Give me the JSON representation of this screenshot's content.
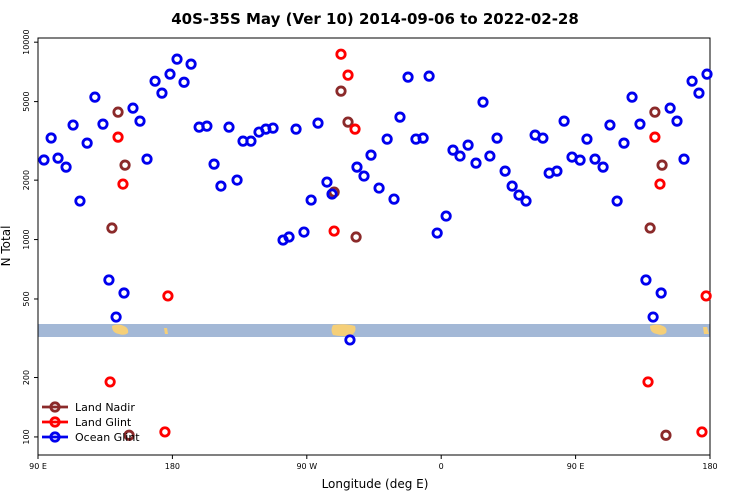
{
  "chart_data": {
    "type": "scatter",
    "title": "40S-35S May (Ver 10)   2014-09-06 to 2022-02-28",
    "x_label": "Longitude (deg E)",
    "y_label": "N Total",
    "log_y": true,
    "legend": "lower left",
    "xlim": [
      90,
      540
    ],
    "xticks": [
      {
        "value": 90,
        "label": "90 E"
      },
      180,
      {
        "value": 270,
        "label": "90 W"
      },
      {
        "value": 360,
        "label": "0"
      },
      {
        "value": 450,
        "label": "90 E"
      },
      {
        "value": 540,
        "label": "180"
      }
    ],
    "ylim": [
      81,
      10500
    ],
    "yticks": [
      100,
      200,
      500,
      1000,
      2000,
      5000,
      10000
    ],
    "series": [
      {
        "name": "Land Nadir",
        "color": "#8b2a2a",
        "x": [
          139.5,
          143.6,
          148.3,
          151.0,
          288.3,
          292.9,
          297.6,
          303.0,
          499.9,
          503.1,
          507.9,
          510.5
        ],
        "values": [
          1144,
          4421,
          2383,
          102,
          1740,
          5649,
          3936,
          1030,
          1144,
          4421,
          2383,
          102
        ]
      },
      {
        "name": "Land Glint",
        "color": "#ff0000",
        "x": [
          138.3,
          143.6,
          146.9,
          177.0,
          175.0,
          288.3,
          292.9,
          297.6,
          302.3,
          498.5,
          503.1,
          506.5,
          534.6,
          537.4
        ],
        "values": [
          190,
          3304,
          1910,
          518,
          106,
          1104,
          8690,
          6808,
          3627,
          190,
          3304,
          1910,
          106,
          518
        ]
      },
      {
        "name": "Ocean Glint",
        "color": "#0000ee",
        "x": [
          94.0,
          98.8,
          103.4,
          108.8,
          113.5,
          118.1,
          122.9,
          128.1,
          133.5,
          137.5,
          142.3,
          147.6,
          153.6,
          158.3,
          163.0,
          168.4,
          173.0,
          178.4,
          183.1,
          187.8,
          192.5,
          197.9,
          203.1,
          207.9,
          212.5,
          217.9,
          223.3,
          227.3,
          232.6,
          238.0,
          242.6,
          247.4,
          254.1,
          258.1,
          262.8,
          268.1,
          272.9,
          277.5,
          283.5,
          286.9,
          298.9,
          303.6,
          308.3,
          313.0,
          318.4,
          323.8,
          328.4,
          332.4,
          337.8,
          343.1,
          347.9,
          351.9,
          357.3,
          363.3,
          367.9,
          372.6,
          378.0,
          383.3,
          388.0,
          392.6,
          397.4,
          402.8,
          407.5,
          412.1,
          416.8,
          422.9,
          428.1,
          432.3,
          437.5,
          442.3,
          447.6,
          453.0,
          457.6,
          463.0,
          468.4,
          473.0,
          477.8,
          482.4,
          487.8,
          493.1,
          497.1,
          501.9,
          507.3,
          513.3,
          517.9,
          522.6,
          528.0,
          532.6,
          538.0
        ],
        "values": [
          2530,
          3270,
          2586,
          2328,
          3802,
          1567,
          3080,
          5266,
          3844,
          624,
          405,
          536,
          4632,
          3981,
          2556,
          6346,
          5519,
          6887,
          8203,
          6266,
          7740,
          3711,
          3755,
          2411,
          1866,
          3711,
          2001,
          3152,
          3152,
          3503,
          3627,
          3670,
          994,
          1030,
          3627,
          1091,
          1585,
          3890,
          1955,
          1700,
          310,
          2328,
          2097,
          2678,
          1823,
          3228,
          1603,
          4172,
          6651,
          3228,
          3266,
          6728,
          1079,
          1315,
          2839,
          2648,
          3009,
          2439,
          4969,
          2648,
          3266,
          2222,
          1866,
          1680,
          1567,
          3382,
          3266,
          2171,
          2222,
          3981,
          2617,
          2526,
          3228,
          2556,
          2328,
          3802,
          1567,
          3080,
          5266,
          3844,
          624,
          405,
          536,
          4632,
          3981,
          2556,
          6346,
          5519,
          6887
        ]
      }
    ]
  }
}
